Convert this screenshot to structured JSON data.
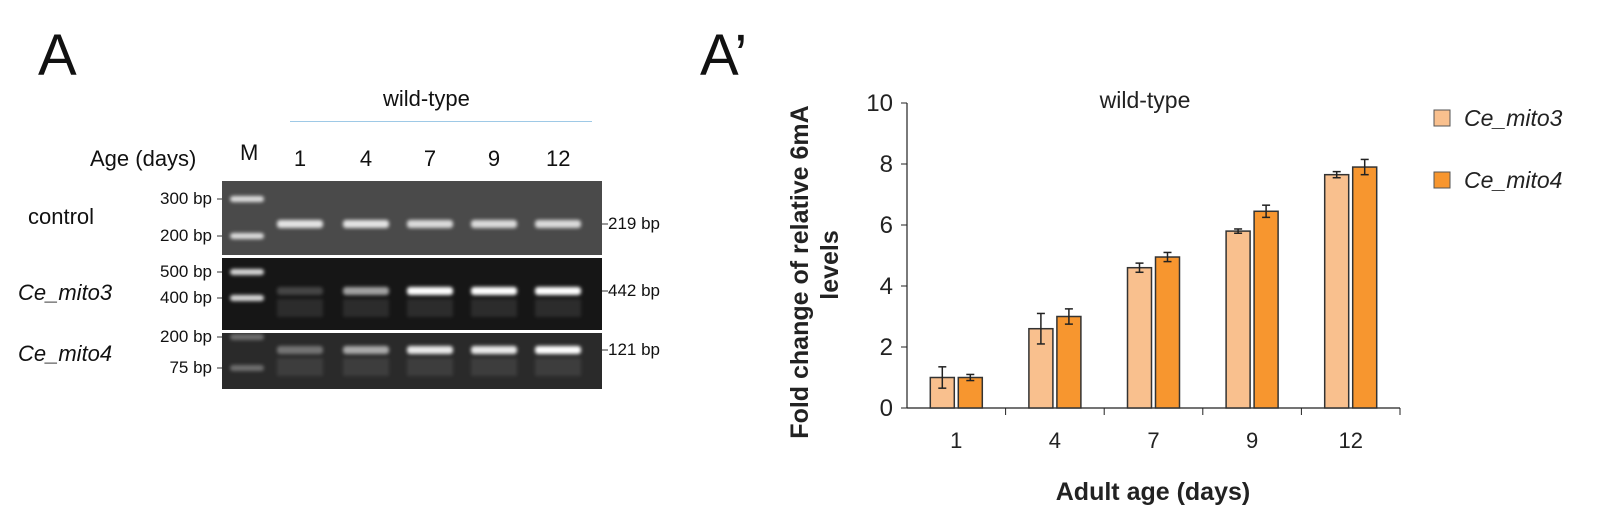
{
  "panel_a": {
    "letter": "A",
    "group_label": "wild-type",
    "age_label": "Age (days)",
    "marker_label": "M",
    "lanes": [
      "1",
      "4",
      "7",
      "9",
      "12"
    ],
    "rows": [
      {
        "name": "control",
        "italic": false,
        "ladder": [
          "300 bp",
          "200 bp"
        ],
        "product": "219 bp"
      },
      {
        "name": "Ce_mito3",
        "italic": true,
        "ladder": [
          "500 bp",
          "400 bp"
        ],
        "product": "442 bp"
      },
      {
        "name": "Ce_mito4",
        "italic": true,
        "ladder": [
          "200 bp",
          "75 bp"
        ],
        "product": "121 bp"
      }
    ]
  },
  "panel_a_prime": {
    "letter": "A’"
  },
  "chart_data": {
    "type": "bar",
    "title": "wild-type",
    "xlabel": "Adult age (days)",
    "ylabel": "Fold change of relative 6mA levels",
    "ylabel_lines": [
      "Fold change of relative 6mA",
      "levels"
    ],
    "categories": [
      "1",
      "4",
      "7",
      "9",
      "12"
    ],
    "ylim": [
      0,
      10
    ],
    "yticks": [
      "0",
      "2",
      "4",
      "6",
      "8",
      "10"
    ],
    "grid": false,
    "legend_position": "top-right",
    "series": [
      {
        "name": "Ce_mito3",
        "color": "#F9C08E",
        "values": [
          1.0,
          2.6,
          4.6,
          5.8,
          7.65
        ],
        "errors": [
          0.35,
          0.5,
          0.15,
          0.07,
          0.1
        ]
      },
      {
        "name": "Ce_mito4",
        "color": "#F7962F",
        "values": [
          1.0,
          3.0,
          4.95,
          6.45,
          7.9
        ],
        "errors": [
          0.1,
          0.25,
          0.15,
          0.2,
          0.25
        ]
      }
    ]
  }
}
